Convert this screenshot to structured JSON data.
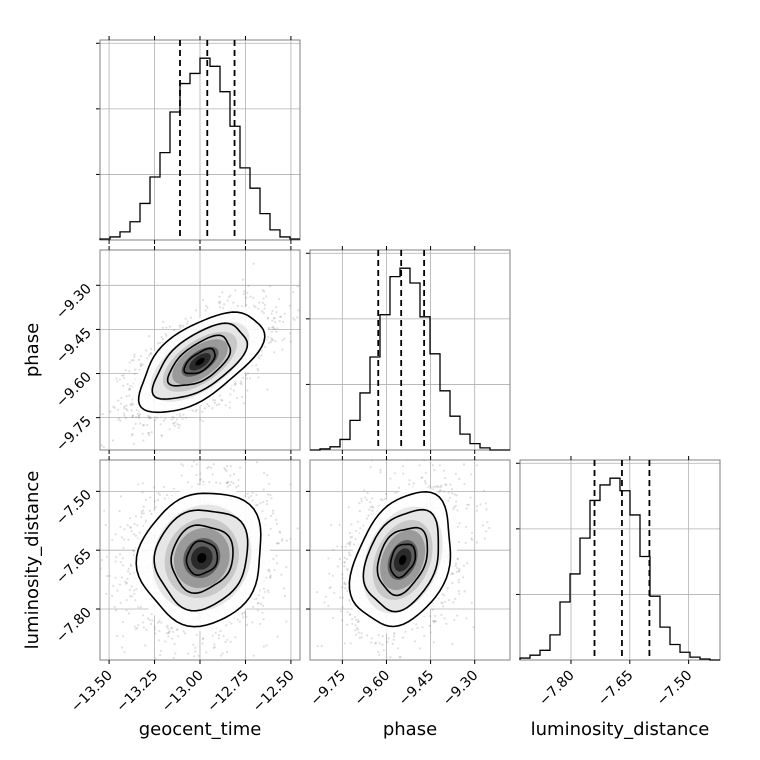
{
  "chart_data": {
    "type": "corner",
    "parameters": [
      "geocent_time",
      "phase",
      "luminosity_distance"
    ],
    "labels": {
      "geocent_time": "geocent_time",
      "phase": "phase",
      "luminosity_distance": "luminosity_distance"
    },
    "ranges": {
      "geocent_time": [
        -13.55,
        -12.45
      ],
      "phase": [
        -9.86,
        -9.18
      ],
      "luminosity_distance": [
        -7.93,
        -7.42
      ]
    },
    "ticks": {
      "geocent_time": {
        "values": [
          -13.5,
          -13.25,
          -13.0,
          -12.75,
          -12.5
        ],
        "labels": [
          "−13.50",
          "−13.25",
          "−13.00",
          "−12.75",
          "−12.50"
        ]
      },
      "phase": {
        "values": [
          -9.75,
          -9.6,
          -9.45,
          -9.3
        ],
        "labels": [
          "−9.75",
          "−9.60",
          "−9.45",
          "−9.30"
        ]
      },
      "luminosity_distance": {
        "values": [
          -7.8,
          -7.65,
          -7.5
        ],
        "labels": [
          "−7.80",
          "−7.65",
          "−7.50"
        ]
      }
    },
    "quantiles": {
      "geocent_time": [
        -13.11,
        -12.96,
        -12.81
      ],
      "phase": [
        -9.628,
        -9.55,
        -9.472
      ],
      "luminosity_distance": [
        -7.74,
        -7.67,
        -7.6
      ]
    },
    "histograms": {
      "geocent_time": {
        "bin_edges": [
          -13.55,
          -13.495,
          -13.44,
          -13.385,
          -13.33,
          -13.275,
          -13.22,
          -13.165,
          -13.11,
          -13.055,
          -13.0,
          -12.945,
          -12.89,
          -12.835,
          -12.78,
          -12.725,
          -12.67,
          -12.615,
          -12.56,
          -12.505,
          -12.45
        ],
        "counts": [
          1,
          3,
          8,
          18,
          36,
          62,
          86,
          126,
          154,
          164,
          179,
          171,
          146,
          112,
          71,
          51,
          26,
          10,
          3,
          1
        ]
      },
      "phase": {
        "bin_edges": [
          -9.86,
          -9.826,
          -9.792,
          -9.758,
          -9.724,
          -9.69,
          -9.656,
          -9.622,
          -9.588,
          -9.554,
          -9.52,
          -9.486,
          -9.452,
          -9.418,
          -9.384,
          -9.35,
          -9.316,
          -9.282,
          -9.248,
          -9.214,
          -9.18
        ],
        "counts": [
          0,
          1,
          3,
          10,
          28,
          54,
          88,
          128,
          164,
          172,
          158,
          126,
          91,
          56,
          32,
          15,
          6,
          2,
          0,
          0
        ]
      },
      "luminosity_distance": {
        "bin_edges": [
          -7.93,
          -7.9045,
          -7.879,
          -7.8535,
          -7.828,
          -7.8025,
          -7.777,
          -7.7515,
          -7.726,
          -7.7005,
          -7.675,
          -7.6495,
          -7.624,
          -7.5985,
          -7.573,
          -7.5475,
          -7.522,
          -7.4965,
          -7.471,
          -7.4455,
          -7.42
        ],
        "counts": [
          2,
          5,
          10,
          26,
          60,
          89,
          126,
          165,
          181,
          188,
          175,
          150,
          107,
          66,
          34,
          16,
          8,
          3,
          1,
          0
        ]
      }
    },
    "pairs": [
      {
        "x": "geocent_time",
        "y": "phase",
        "center": [
          -13.0,
          -9.56
        ],
        "sigma": [
          0.17,
          0.085
        ],
        "correlation": 0.6
      },
      {
        "x": "geocent_time",
        "y": "luminosity_distance",
        "center": [
          -12.99,
          -7.67
        ],
        "sigma": [
          0.17,
          0.085
        ],
        "correlation": 0.1
      },
      {
        "x": "phase",
        "y": "luminosity_distance",
        "center": [
          -9.545,
          -7.675
        ],
        "sigma": [
          0.085,
          0.085
        ],
        "correlation": 0.3
      }
    ],
    "contour_levels_sigma": [
      0.5,
      1.0,
      1.5,
      2.0
    ],
    "colors": {
      "line": "#000000",
      "grid": "#b0b0b0",
      "scatter": "#808080",
      "frame": "#808080"
    }
  }
}
